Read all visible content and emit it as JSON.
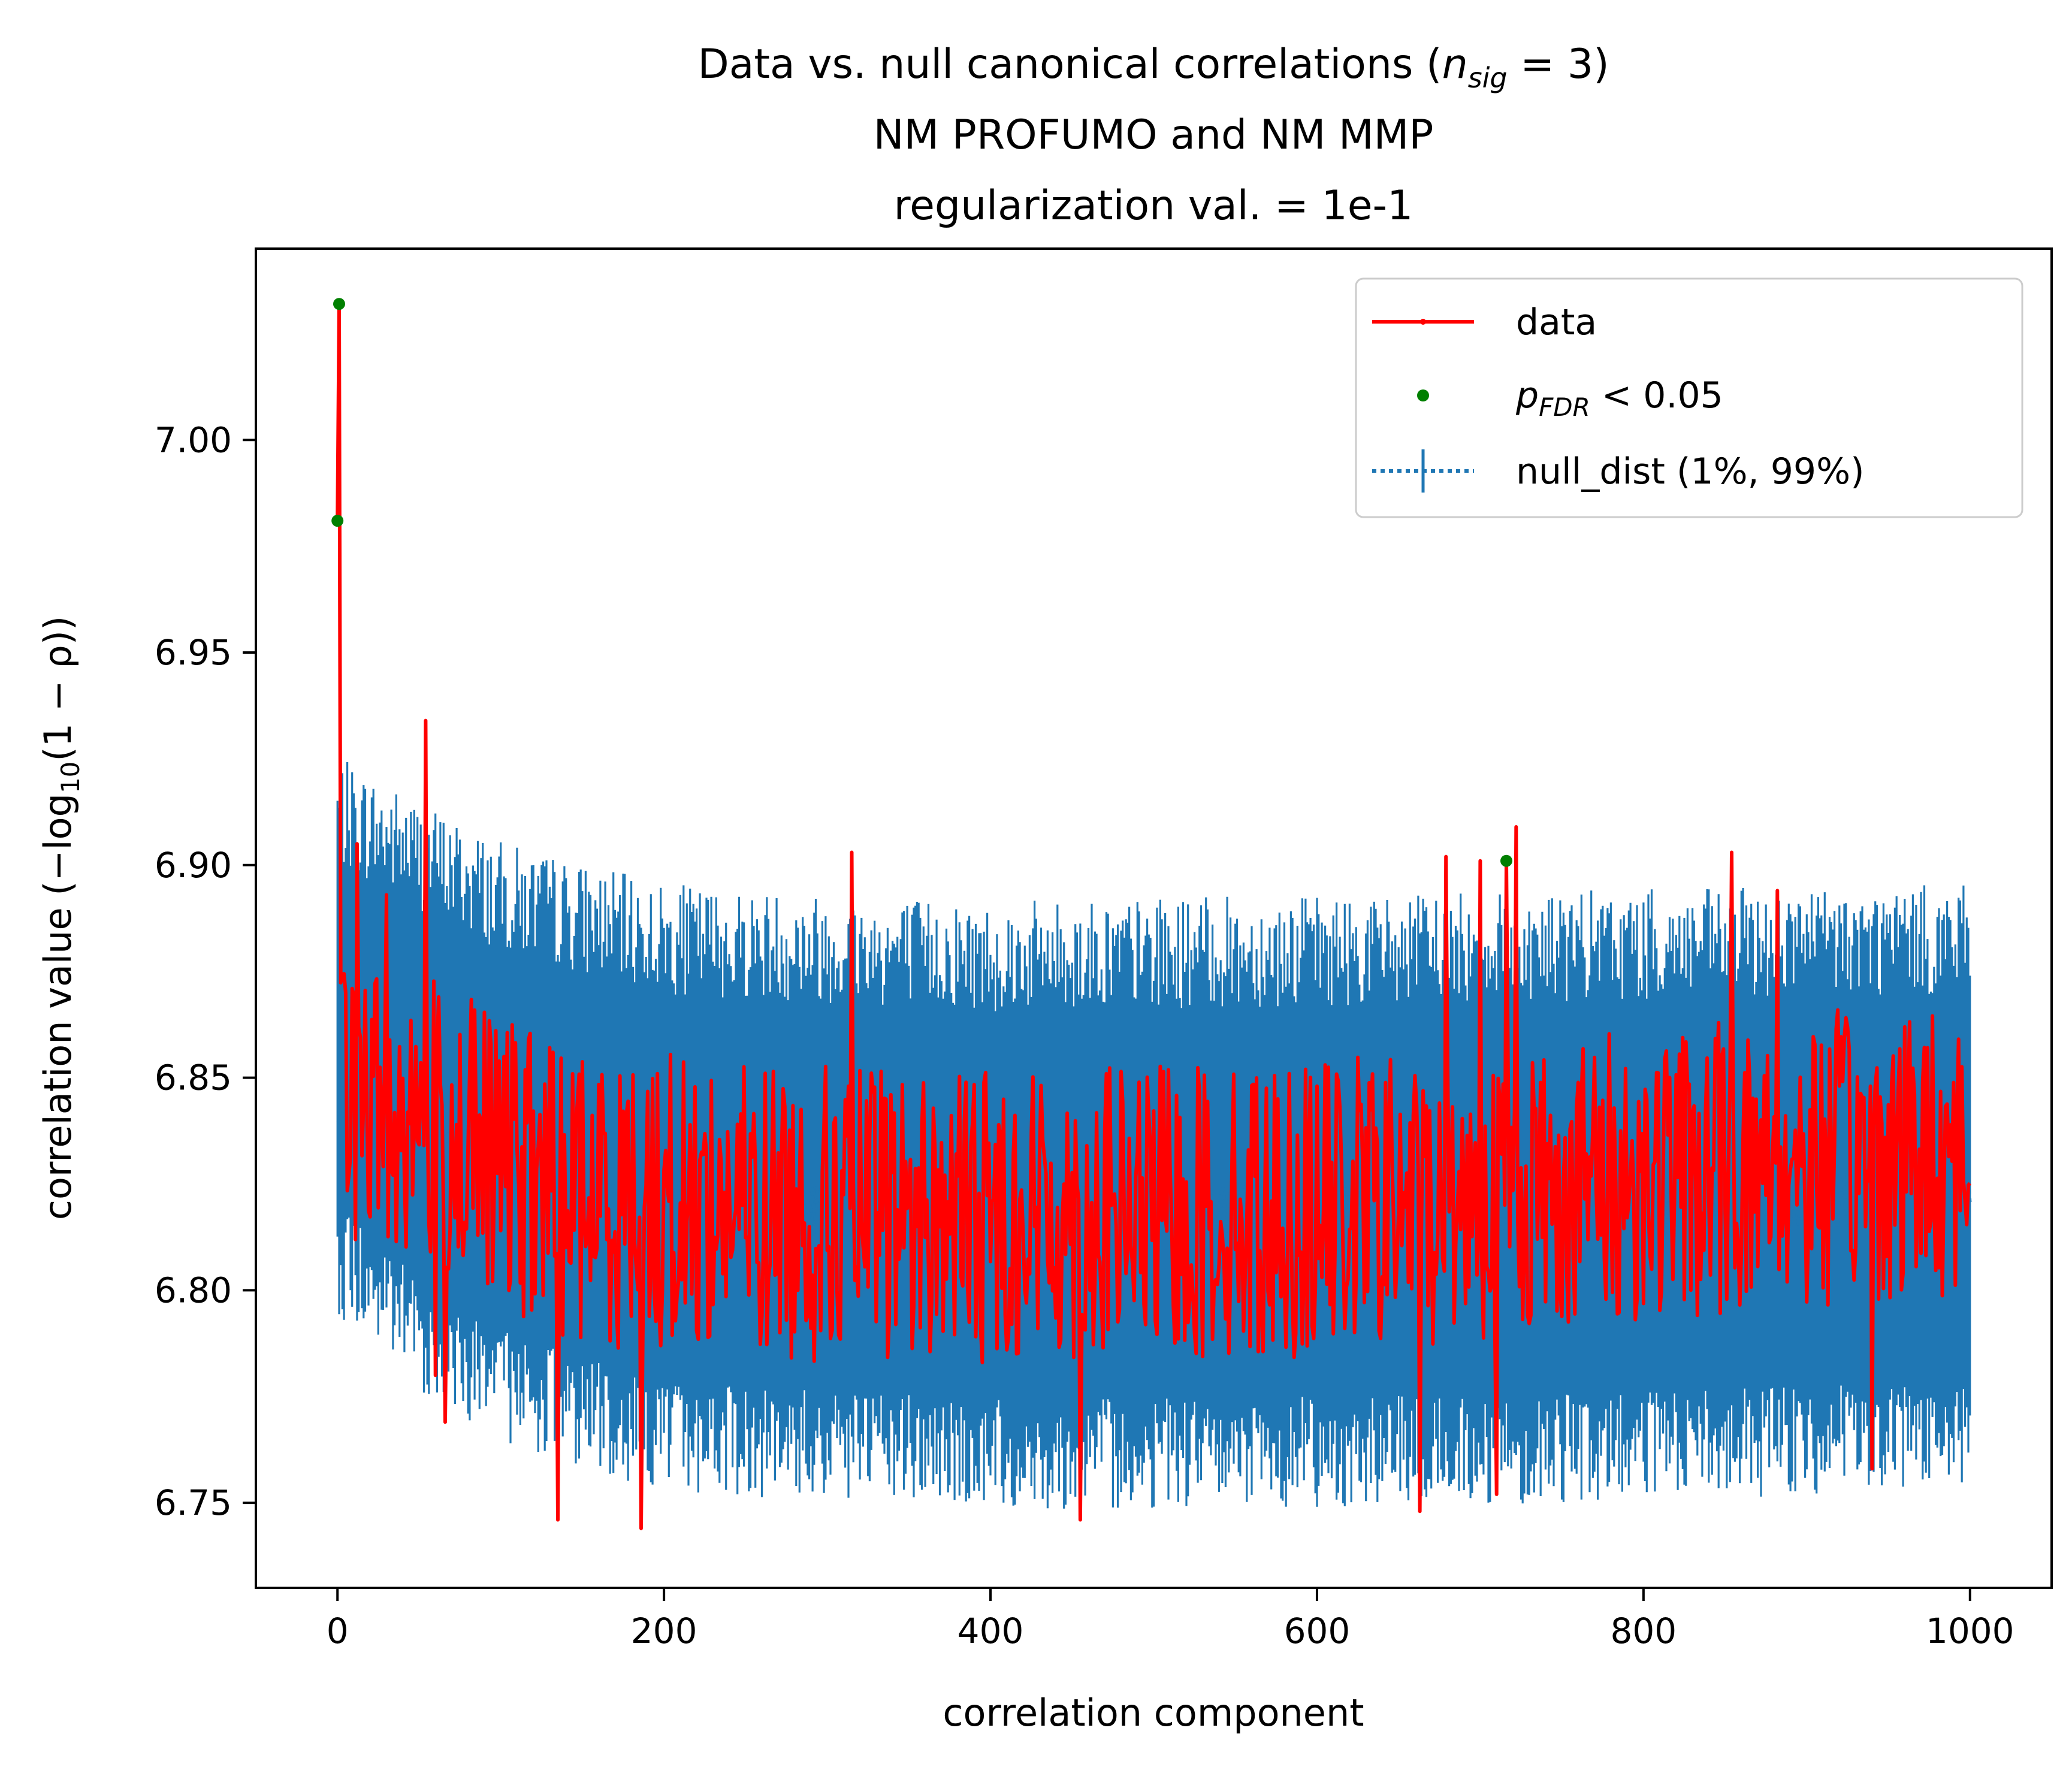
{
  "chart_data": {
    "type": "line",
    "title": {
      "line1_prefix": "Data vs. null canonical correlations (",
      "line1_math_var": "n",
      "line1_math_sub": "sig",
      "line1_math_rest": " = 3)",
      "line2": "NM PROFUMO and NM MMP",
      "line3": "regularization val. = 1e-1"
    },
    "xlabel": "correlation component",
    "ylabel": {
      "prefix": "correlation value (−log",
      "sub": "10",
      "suffix": "(1 − ρ))"
    },
    "xlim": [
      -50,
      1050
    ],
    "ylim": [
      6.73,
      7.045
    ],
    "xticks": [
      0,
      200,
      400,
      600,
      800,
      1000
    ],
    "yticks": [
      6.75,
      6.8,
      6.85,
      6.9,
      6.95,
      7.0
    ],
    "grid": false,
    "legend_position": "upper-right",
    "colors": {
      "data": "#ff0000",
      "significant": "#008000",
      "null_dist": "#1f77b4"
    },
    "legend": {
      "data": "data",
      "significant_var": "p",
      "significant_sub": "FDR",
      "significant_rest": " < 0.05",
      "null_dist": "null_dist (1%, 99%)"
    },
    "n_components": 1001,
    "significant_points": [
      {
        "x": 0,
        "y": 6.981
      },
      {
        "x": 1,
        "y": 7.032
      },
      {
        "x": 716,
        "y": 6.901
      }
    ],
    "data_peaks": [
      {
        "x": 0,
        "y": 6.981
      },
      {
        "x": 1,
        "y": 7.032
      },
      {
        "x": 5,
        "y": 6.87
      },
      {
        "x": 12,
        "y": 6.905
      },
      {
        "x": 30,
        "y": 6.893
      },
      {
        "x": 54,
        "y": 6.934
      },
      {
        "x": 60,
        "y": 6.78
      },
      {
        "x": 66,
        "y": 6.769
      },
      {
        "x": 135,
        "y": 6.746
      },
      {
        "x": 186,
        "y": 6.744
      },
      {
        "x": 315,
        "y": 6.903
      },
      {
        "x": 455,
        "y": 6.746
      },
      {
        "x": 663,
        "y": 6.748
      },
      {
        "x": 679,
        "y": 6.902
      },
      {
        "x": 700,
        "y": 6.901
      },
      {
        "x": 710,
        "y": 6.752
      },
      {
        "x": 716,
        "y": 6.901
      },
      {
        "x": 722,
        "y": 6.909
      },
      {
        "x": 854,
        "y": 6.903
      },
      {
        "x": 882,
        "y": 6.894
      },
      {
        "x": 940,
        "y": 6.758
      },
      {
        "x": 1001,
        "y": 6.825
      }
    ],
    "null_mean_trend": [
      {
        "x": 0,
        "y": 6.845
      },
      {
        "x": 50,
        "y": 6.84
      },
      {
        "x": 100,
        "y": 6.83
      },
      {
        "x": 150,
        "y": 6.822
      },
      {
        "x": 300,
        "y": 6.818
      },
      {
        "x": 500,
        "y": 6.818
      },
      {
        "x": 700,
        "y": 6.82
      },
      {
        "x": 1001,
        "y": 6.822
      }
    ],
    "null_upper_trend": [
      {
        "x": 0,
        "y": 6.91
      },
      {
        "x": 50,
        "y": 6.9
      },
      {
        "x": 100,
        "y": 6.89
      },
      {
        "x": 200,
        "y": 6.88
      },
      {
        "x": 400,
        "y": 6.876
      },
      {
        "x": 700,
        "y": 6.878
      },
      {
        "x": 1001,
        "y": 6.88
      }
    ],
    "null_lower_trend": [
      {
        "x": 0,
        "y": 6.81
      },
      {
        "x": 50,
        "y": 6.792
      },
      {
        "x": 100,
        "y": 6.78
      },
      {
        "x": 200,
        "y": 6.768
      },
      {
        "x": 400,
        "y": 6.764
      },
      {
        "x": 700,
        "y": 6.765
      },
      {
        "x": 1001,
        "y": 6.768
      }
    ]
  }
}
